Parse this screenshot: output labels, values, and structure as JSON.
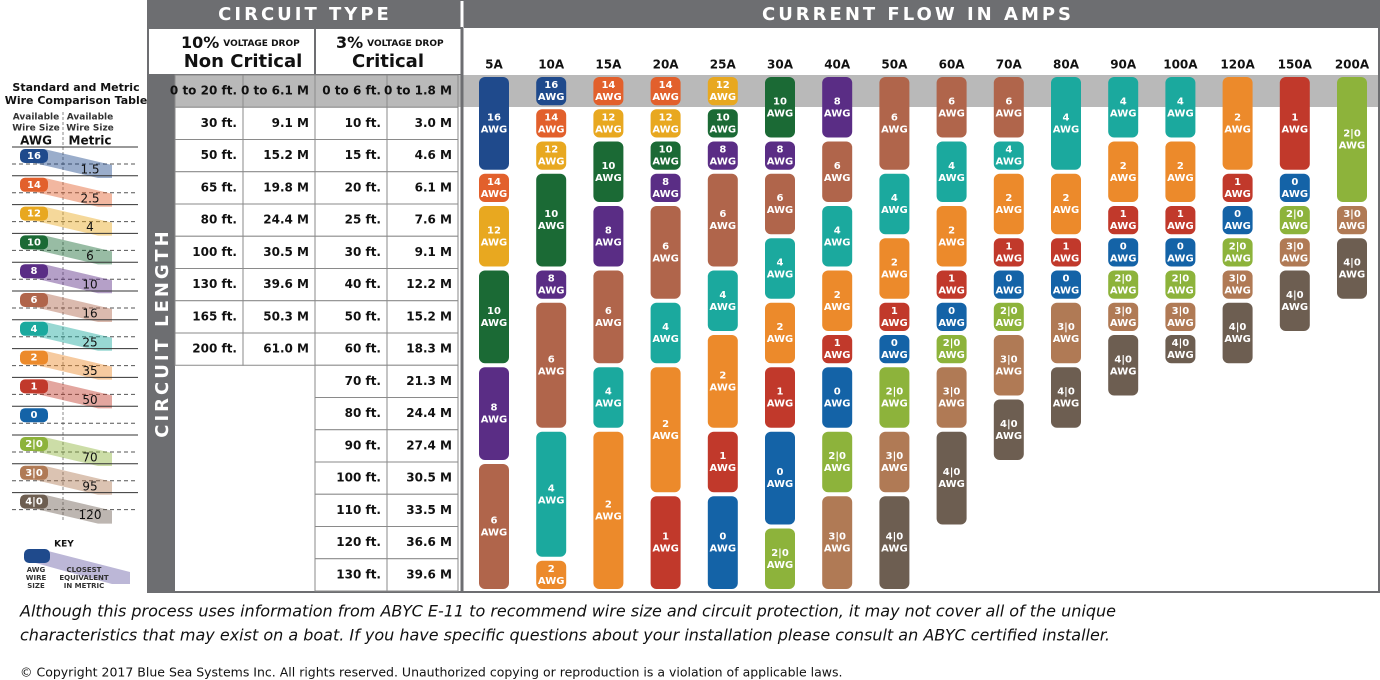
{
  "key_table": {
    "title": [
      "Standard and Metric",
      "Wire Comparison Table"
    ],
    "awg_head": [
      "Available",
      "Wire Size"
    ],
    "awg": "AWG",
    "metric_head": [
      "Available",
      "Wire Size"
    ],
    "metric": "Metric",
    "rows": [
      [
        "16",
        "1.5"
      ],
      [
        "14",
        "2.5"
      ],
      [
        "12",
        "4"
      ],
      [
        "10",
        "6"
      ],
      [
        "8",
        "10"
      ],
      [
        "6",
        "16"
      ],
      [
        "4",
        "25"
      ],
      [
        "2",
        "35"
      ],
      [
        "1",
        "50"
      ],
      [
        "0",
        null
      ],
      [
        "2|0",
        "70"
      ],
      [
        "3|0",
        "95"
      ],
      [
        "4|0",
        "120"
      ]
    ]
  },
  "key": {
    "title": "KEY",
    "awg_label": [
      "AWG",
      "WIRE",
      "SIZE"
    ],
    "metric_label": [
      "CLOSEST",
      "EQUIVALENT",
      "IN METRIC"
    ]
  },
  "header": {
    "circuit_type": "CIRCUIT TYPE",
    "current_flow": "CURRENT FLOW IN AMPS",
    "circuit_length": "CIRCUIT LENGTH"
  },
  "drops": [
    {
      "pct": "10%",
      "label": "VOLTAGE DROP",
      "name": "Non Critical"
    },
    {
      "pct": "3%",
      "label": "VOLTAGE DROP",
      "name": "Critical"
    }
  ],
  "lengths": [
    [
      "0 to 20 ft.",
      "0 to 6.1 M",
      "0 to 6 ft.",
      "0 to 1.8 M"
    ],
    [
      "30 ft.",
      "9.1 M",
      "10 ft.",
      "3.0 M"
    ],
    [
      "50 ft.",
      "15.2 M",
      "15 ft.",
      "4.6 M"
    ],
    [
      "65 ft.",
      "19.8 M",
      "20 ft.",
      "6.1 M"
    ],
    [
      "80 ft.",
      "24.4 M",
      "25 ft.",
      "7.6 M"
    ],
    [
      "100 ft.",
      "30.5 M",
      "30 ft.",
      "9.1 M"
    ],
    [
      "130 ft.",
      "39.6 M",
      "40 ft.",
      "12.2 M"
    ],
    [
      "165 ft.",
      "50.3 M",
      "50 ft.",
      "15.2 M"
    ],
    [
      "200 ft.",
      "61.0 M",
      "60 ft.",
      "18.3 M"
    ],
    [
      null,
      null,
      "70 ft.",
      "21.3 M"
    ],
    [
      null,
      null,
      "80 ft.",
      "24.4 M"
    ],
    [
      null,
      null,
      "90 ft.",
      "27.4 M"
    ],
    [
      null,
      null,
      "100 ft.",
      "30.5 M"
    ],
    [
      null,
      null,
      "110 ft.",
      "33.5 M"
    ],
    [
      null,
      null,
      "120 ft.",
      "36.6 M"
    ],
    [
      null,
      null,
      "130 ft.",
      "39.6 M"
    ]
  ],
  "unit": "AWG",
  "colors": {
    "16": "#1f4a8c",
    "14": "#e2602c",
    "12": "#e8a820",
    "10": "#1b6a35",
    "8": "#5a2d85",
    "6": "#b0654b",
    "4": "#1ba99e",
    "2": "#ec8a2b",
    "1": "#c1392b",
    "0": "#1463a7",
    "2|0": "#8db33b",
    "3|0": "#b07a55",
    "4|0": "#6d5e51"
  },
  "columns": [
    {
      "amps": "5A",
      "wires": [
        [
          "16",
          3
        ],
        [
          "14",
          1
        ],
        [
          "12",
          2
        ],
        [
          "10",
          3
        ],
        [
          "8",
          3
        ],
        [
          "6",
          4
        ]
      ]
    },
    {
      "amps": "10A",
      "wires": [
        [
          "16",
          1
        ],
        [
          "14",
          1
        ],
        [
          "12",
          1
        ],
        [
          "10",
          3
        ],
        [
          "8",
          1
        ],
        [
          "6",
          4
        ],
        [
          "4",
          4
        ],
        [
          "2",
          1
        ]
      ]
    },
    {
      "amps": "15A",
      "wires": [
        [
          "14",
          1
        ],
        [
          "12",
          1
        ],
        [
          "10",
          2
        ],
        [
          "8",
          2
        ],
        [
          "6",
          3
        ],
        [
          "4",
          2
        ],
        [
          "2",
          5
        ]
      ]
    },
    {
      "amps": "20A",
      "wires": [
        [
          "14",
          1
        ],
        [
          "12",
          1
        ],
        [
          "10",
          1
        ],
        [
          "8",
          1
        ],
        [
          "6",
          3
        ],
        [
          "4",
          2
        ],
        [
          "2",
          4
        ],
        [
          "1",
          3
        ]
      ]
    },
    {
      "amps": "25A",
      "wires": [
        [
          "12",
          1
        ],
        [
          "10",
          1
        ],
        [
          "8",
          1
        ],
        [
          "6",
          3
        ],
        [
          "4",
          2
        ],
        [
          "2",
          3
        ],
        [
          "1",
          2
        ],
        [
          "0",
          3
        ]
      ]
    },
    {
      "amps": "30A",
      "wires": [
        [
          "10",
          2
        ],
        [
          "8",
          1
        ],
        [
          "6",
          2
        ],
        [
          "4",
          2
        ],
        [
          "2",
          2
        ],
        [
          "1",
          2
        ],
        [
          "0",
          3
        ],
        [
          "2|0",
          2
        ]
      ]
    },
    {
      "amps": "40A",
      "wires": [
        [
          "8",
          2
        ],
        [
          "6",
          2
        ],
        [
          "4",
          2
        ],
        [
          "2",
          2
        ],
        [
          "1",
          1
        ],
        [
          "0",
          2
        ],
        [
          "2|0",
          2
        ],
        [
          "3|0",
          3
        ]
      ]
    },
    {
      "amps": "50A",
      "wires": [
        [
          "6",
          3
        ],
        [
          "4",
          2
        ],
        [
          "2",
          2
        ],
        [
          "1",
          1
        ],
        [
          "0",
          1
        ],
        [
          "2|0",
          2
        ],
        [
          "3|0",
          2
        ],
        [
          "4|0",
          3
        ]
      ]
    },
    {
      "amps": "60A",
      "wires": [
        [
          "6",
          2
        ],
        [
          "4",
          2
        ],
        [
          "2",
          2
        ],
        [
          "1",
          1
        ],
        [
          "0",
          1
        ],
        [
          "2|0",
          1
        ],
        [
          "3|0",
          2
        ],
        [
          "4|0",
          3
        ]
      ]
    },
    {
      "amps": "70A",
      "wires": [
        [
          "6",
          2
        ],
        [
          "4",
          1
        ],
        [
          "2",
          2
        ],
        [
          "1",
          1
        ],
        [
          "0",
          1
        ],
        [
          "2|0",
          1
        ],
        [
          "3|0",
          2
        ],
        [
          "4|0",
          2
        ]
      ]
    },
    {
      "amps": "80A",
      "wires": [
        [
          "4",
          3
        ],
        [
          "2",
          2
        ],
        [
          "1",
          1
        ],
        [
          "0",
          1
        ],
        [
          "3|0",
          2
        ],
        [
          "4|0",
          2
        ]
      ]
    },
    {
      "amps": "90A",
      "wires": [
        [
          "4",
          2
        ],
        [
          "2",
          2
        ],
        [
          "1",
          1
        ],
        [
          "0",
          1
        ],
        [
          "2|0",
          1
        ],
        [
          "3|0",
          1
        ],
        [
          "4|0",
          2
        ]
      ]
    },
    {
      "amps": "100A",
      "wires": [
        [
          "4",
          2
        ],
        [
          "2",
          2
        ],
        [
          "1",
          1
        ],
        [
          "0",
          1
        ],
        [
          "2|0",
          1
        ],
        [
          "3|0",
          1
        ],
        [
          "4|0",
          1
        ]
      ]
    },
    {
      "amps": "120A",
      "wires": [
        [
          "2",
          3
        ],
        [
          "1",
          1
        ],
        [
          "0",
          1
        ],
        [
          "2|0",
          1
        ],
        [
          "3|0",
          1
        ],
        [
          "4|0",
          2
        ]
      ]
    },
    {
      "amps": "150A",
      "wires": [
        [
          "1",
          3
        ],
        [
          "0",
          1
        ],
        [
          "2|0",
          1
        ],
        [
          "3|0",
          1
        ],
        [
          "4|0",
          2
        ]
      ]
    },
    {
      "amps": "200A",
      "wires": [
        [
          "2|0",
          4
        ],
        [
          "3|0",
          1
        ],
        [
          "4|0",
          2
        ]
      ]
    }
  ],
  "footer": {
    "disclaimer": [
      "Although this process uses information from ABYC E-11 to recommend wire size and circuit protection, it may not cover all of the unique",
      "characteristics that may exist on a boat. If you have specific questions about your installation please consult an ABYC certified installer."
    ],
    "copyright": "© Copyright 2017 Blue Sea Systems Inc. All rights reserved. Unauthorized copying or reproduction is a violation of applicable laws."
  }
}
